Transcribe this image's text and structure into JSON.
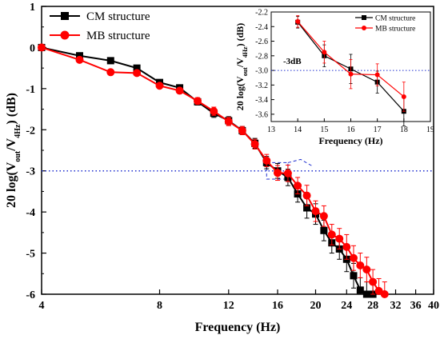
{
  "chart_data": {
    "type": "line",
    "xscale": "log",
    "xlabel": "Frequency (Hz)",
    "ylabel": "20 log(V_out/V_4Hz) (dB)",
    "xlim": [
      4,
      40
    ],
    "ylim": [
      -6,
      1
    ],
    "x_ticks": [
      4,
      8,
      12,
      16,
      20,
      24,
      28,
      32,
      36,
      40
    ],
    "y_ticks": [
      1,
      0,
      -1,
      -2,
      -3,
      -4,
      -5,
      -6
    ],
    "reference_line": {
      "y": -3,
      "style": "dotted",
      "color": "#1f2fcf"
    },
    "legend": {
      "position": "top-left"
    },
    "series": [
      {
        "name": "CM structure",
        "color": "#000000",
        "marker": "square",
        "x": [
          4,
          5,
          6,
          7,
          8,
          9,
          10,
          11,
          12,
          13,
          14,
          15,
          16,
          17,
          18,
          19,
          20,
          21,
          22,
          23,
          24,
          25,
          26,
          27,
          28
        ],
        "y": [
          0,
          -0.2,
          -0.32,
          -0.5,
          -0.85,
          -0.98,
          -1.32,
          -1.6,
          -1.78,
          -2.02,
          -2.33,
          -2.8,
          -3.0,
          -3.16,
          -3.56,
          -3.9,
          -4.05,
          -4.45,
          -4.75,
          -4.9,
          -5.15,
          -5.55,
          -5.9,
          -6.0,
          -6.0
        ],
        "err": [
          0,
          0,
          0,
          0,
          0.05,
          0.05,
          0.08,
          0.1,
          0.1,
          0.1,
          0.12,
          0.15,
          0.18,
          0.2,
          0.2,
          0.25,
          0.25,
          0.25,
          0.25,
          0.25,
          0.3,
          0.3,
          0.3,
          0.3,
          0.3
        ]
      },
      {
        "name": "MB structure",
        "color": "#ff0000",
        "marker": "circle",
        "x": [
          4,
          5,
          6,
          7,
          8,
          9,
          10,
          11,
          12,
          13,
          14,
          15,
          16,
          17,
          18,
          19,
          20,
          21,
          22,
          23,
          24,
          25,
          26,
          27,
          28,
          29,
          30
        ],
        "y": [
          0,
          -0.3,
          -0.6,
          -0.62,
          -0.93,
          -1.05,
          -1.3,
          -1.55,
          -1.8,
          -2.02,
          -2.35,
          -2.75,
          -3.05,
          -3.06,
          -3.36,
          -3.6,
          -3.98,
          -4.1,
          -4.55,
          -4.65,
          -4.85,
          -5.12,
          -5.3,
          -5.4,
          -5.7,
          -5.92,
          -6.0
        ],
        "err": [
          0,
          0,
          0,
          0,
          0.05,
          0.05,
          0.08,
          0.1,
          0.1,
          0.1,
          0.12,
          0.15,
          0.18,
          0.2,
          0.2,
          0.25,
          0.25,
          0.25,
          0.25,
          0.25,
          0.3,
          0.3,
          0.3,
          0.3,
          0.3,
          0.3,
          0.3
        ]
      }
    ],
    "inset": {
      "xlabel": "Frequency (Hz)",
      "ylabel": "20 log(V_out/V_4Hz) (dB)",
      "xlim": [
        13,
        19
      ],
      "ylim": [
        -3.7,
        -2.2
      ],
      "x_ticks": [
        13,
        14,
        15,
        16,
        17,
        18,
        19
      ],
      "y_ticks": [
        -2.2,
        -2.4,
        -2.6,
        -2.8,
        -3.0,
        -3.2,
        -3.4,
        -3.6
      ],
      "annotation": "-3dB",
      "reference_line": {
        "y": -3,
        "style": "dotted",
        "color": "#1f2fcf"
      },
      "series": [
        {
          "name": "CM structure",
          "color": "#000000",
          "marker": "square",
          "x": [
            14,
            15,
            16,
            17,
            18
          ],
          "y": [
            -2.34,
            -2.8,
            -2.98,
            -3.16,
            -3.56
          ],
          "err": [
            0.08,
            0.15,
            0.2,
            0.15,
            0.2
          ]
        },
        {
          "name": "MB structure",
          "color": "#ff0000",
          "marker": "circle",
          "x": [
            14,
            15,
            16,
            17,
            18
          ],
          "y": [
            -2.33,
            -2.75,
            -3.05,
            -3.06,
            -3.36
          ],
          "err": [
            0.08,
            0.15,
            0.2,
            0.15,
            0.2
          ]
        }
      ]
    }
  }
}
